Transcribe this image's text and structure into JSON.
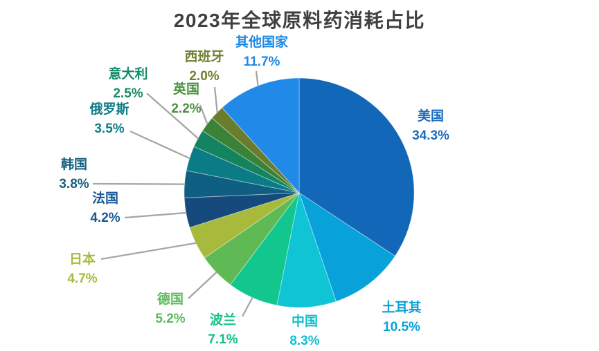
{
  "page": {
    "background": "#ffffff"
  },
  "chart_data": {
    "type": "pie",
    "title": "2023年全球原料药消耗占比",
    "title_color": "#404040",
    "leader_line_color": "#a6a6a6",
    "start_angle_deg": 0,
    "direction": "clockwise",
    "legend_position": "outside-labels",
    "slices": [
      {
        "name": "美国",
        "value": 34.3,
        "pct_label": "34.3%",
        "color": "#1367b8",
        "label_color": "#1b6bbf"
      },
      {
        "name": "土耳其",
        "value": 10.5,
        "pct_label": "10.5%",
        "color": "#09a1d9",
        "label_color": "#09a0d8"
      },
      {
        "name": "中国",
        "value": 8.3,
        "pct_label": "8.3%",
        "color": "#0fc4d4",
        "label_color": "#0fc0cd"
      },
      {
        "name": "波兰",
        "value": 7.1,
        "pct_label": "7.1%",
        "color": "#11c78e",
        "label_color": "#12c183"
      },
      {
        "name": "德国",
        "value": 5.2,
        "pct_label": "5.2%",
        "color": "#5fba56",
        "label_color": "#5cbb5c"
      },
      {
        "name": "日本",
        "value": 4.7,
        "pct_label": "4.7%",
        "color": "#a7ba3c",
        "label_color": "#a3bd3e"
      },
      {
        "name": "法国",
        "value": 4.2,
        "pct_label": "4.2%",
        "color": "#164a7c",
        "label_color": "#1b5795"
      },
      {
        "name": "韩国",
        "value": 3.8,
        "pct_label": "3.8%",
        "color": "#0f5f83",
        "label_color": "#16607f"
      },
      {
        "name": "俄罗斯",
        "value": 3.5,
        "pct_label": "3.5%",
        "color": "#0b7b85",
        "label_color": "#0e7b85"
      },
      {
        "name": "意大利",
        "value": 2.5,
        "pct_label": "2.5%",
        "color": "#14835f",
        "label_color": "#148a68"
      },
      {
        "name": "英国",
        "value": 2.2,
        "pct_label": "2.2%",
        "color": "#3a8238",
        "label_color": "#49923c"
      },
      {
        "name": "西班牙",
        "value": 2.0,
        "pct_label": "2.0%",
        "color": "#6a7d2c",
        "label_color": "#6f812e"
      },
      {
        "name": "其他国家",
        "value": 11.7,
        "pct_label": "11.7%",
        "color": "#2189e8",
        "label_color": "#1e88e5"
      }
    ]
  }
}
